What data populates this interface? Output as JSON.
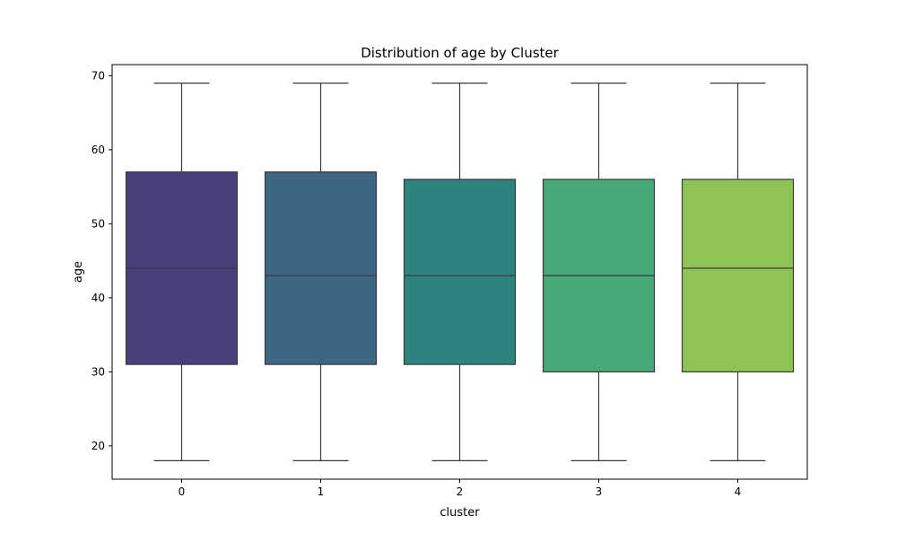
{
  "chart_data": {
    "type": "box",
    "title": "Distribution of age by Cluster",
    "xlabel": "cluster",
    "ylabel": "age",
    "categories": [
      "0",
      "1",
      "2",
      "3",
      "4"
    ],
    "ylim": [
      15.5,
      71.5
    ],
    "yticks": [
      20,
      30,
      40,
      50,
      60,
      70
    ],
    "grid": false,
    "legend": "none",
    "boxes": [
      {
        "category": "0",
        "min": 18,
        "q1": 31,
        "median": 44,
        "q3": 57,
        "max": 69,
        "color": "#4a3f7a"
      },
      {
        "category": "1",
        "min": 18,
        "q1": 31,
        "median": 43,
        "q3": 57,
        "max": 69,
        "color": "#3d6584"
      },
      {
        "category": "2",
        "min": 18,
        "q1": 31,
        "median": 43,
        "q3": 56,
        "max": 69,
        "color": "#2d837e"
      },
      {
        "category": "3",
        "min": 18,
        "q1": 30,
        "median": 43,
        "q3": 56,
        "max": 69,
        "color": "#47a878"
      },
      {
        "category": "4",
        "min": 18,
        "q1": 30,
        "median": 44,
        "q3": 56,
        "max": 69,
        "color": "#8ec455"
      }
    ]
  }
}
